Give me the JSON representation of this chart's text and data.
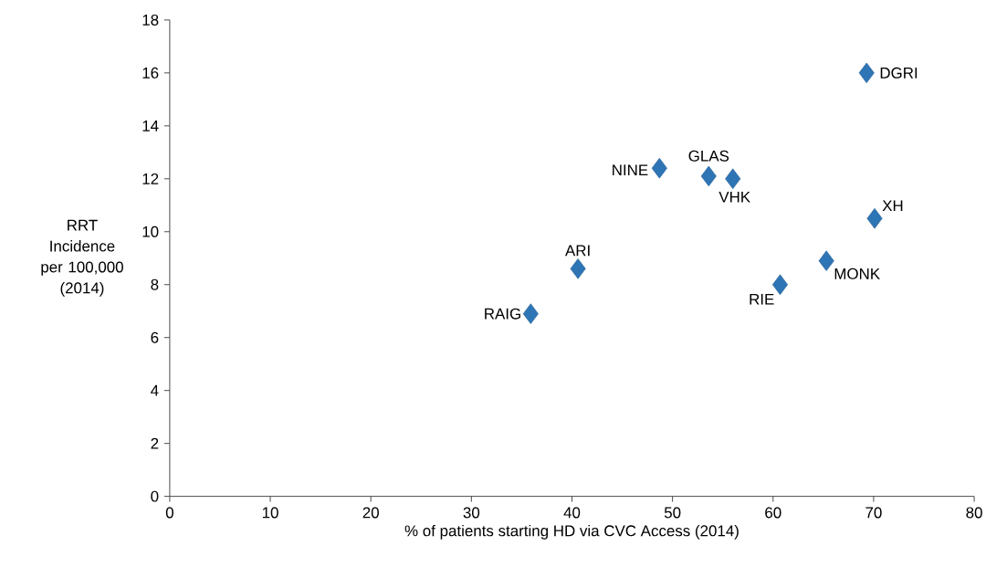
{
  "chart_data": {
    "type": "scatter",
    "xlabel": "% of patients starting  HD via CVC Access (2014)",
    "ylabel": "RRT Incidence per 100,000 (2014)",
    "x": [
      35.9,
      40.6,
      48.7,
      53.6,
      56.0,
      60.7,
      65.3,
      70.1,
      69.3
    ],
    "values": [
      6.9,
      8.6,
      12.4,
      12.1,
      12.0,
      8.0,
      8.9,
      10.5,
      16.0
    ],
    "color": "#2e75b6",
    "marker": "diamond",
    "grid": false,
    "xlim": [
      0,
      80
    ],
    "ylim": [
      0,
      18
    ],
    "xticks": [
      0,
      10,
      20,
      30,
      40,
      50,
      60,
      70,
      80
    ],
    "yticks": [
      0,
      2,
      4,
      6,
      8,
      10,
      12,
      14,
      16,
      18
    ],
    "annotations": [
      {
        "text": "RAIG",
        "x": 35.9,
        "y": 6.9
      },
      {
        "text": "ARI",
        "x": 40.6,
        "y": 8.6
      },
      {
        "text": "NINE",
        "x": 48.7,
        "y": 12.4
      },
      {
        "text": "GLAS",
        "x": 53.6,
        "y": 12.1
      },
      {
        "text": "VHK",
        "x": 56.0,
        "y": 12.0
      },
      {
        "text": "RIE",
        "x": 60.7,
        "y": 8.0
      },
      {
        "text": "MONK",
        "x": 65.3,
        "y": 8.9
      },
      {
        "text": "XH",
        "x": 70.1,
        "y": 10.5
      },
      {
        "text": "DGRI",
        "x": 69.3,
        "y": 16.0
      }
    ]
  }
}
